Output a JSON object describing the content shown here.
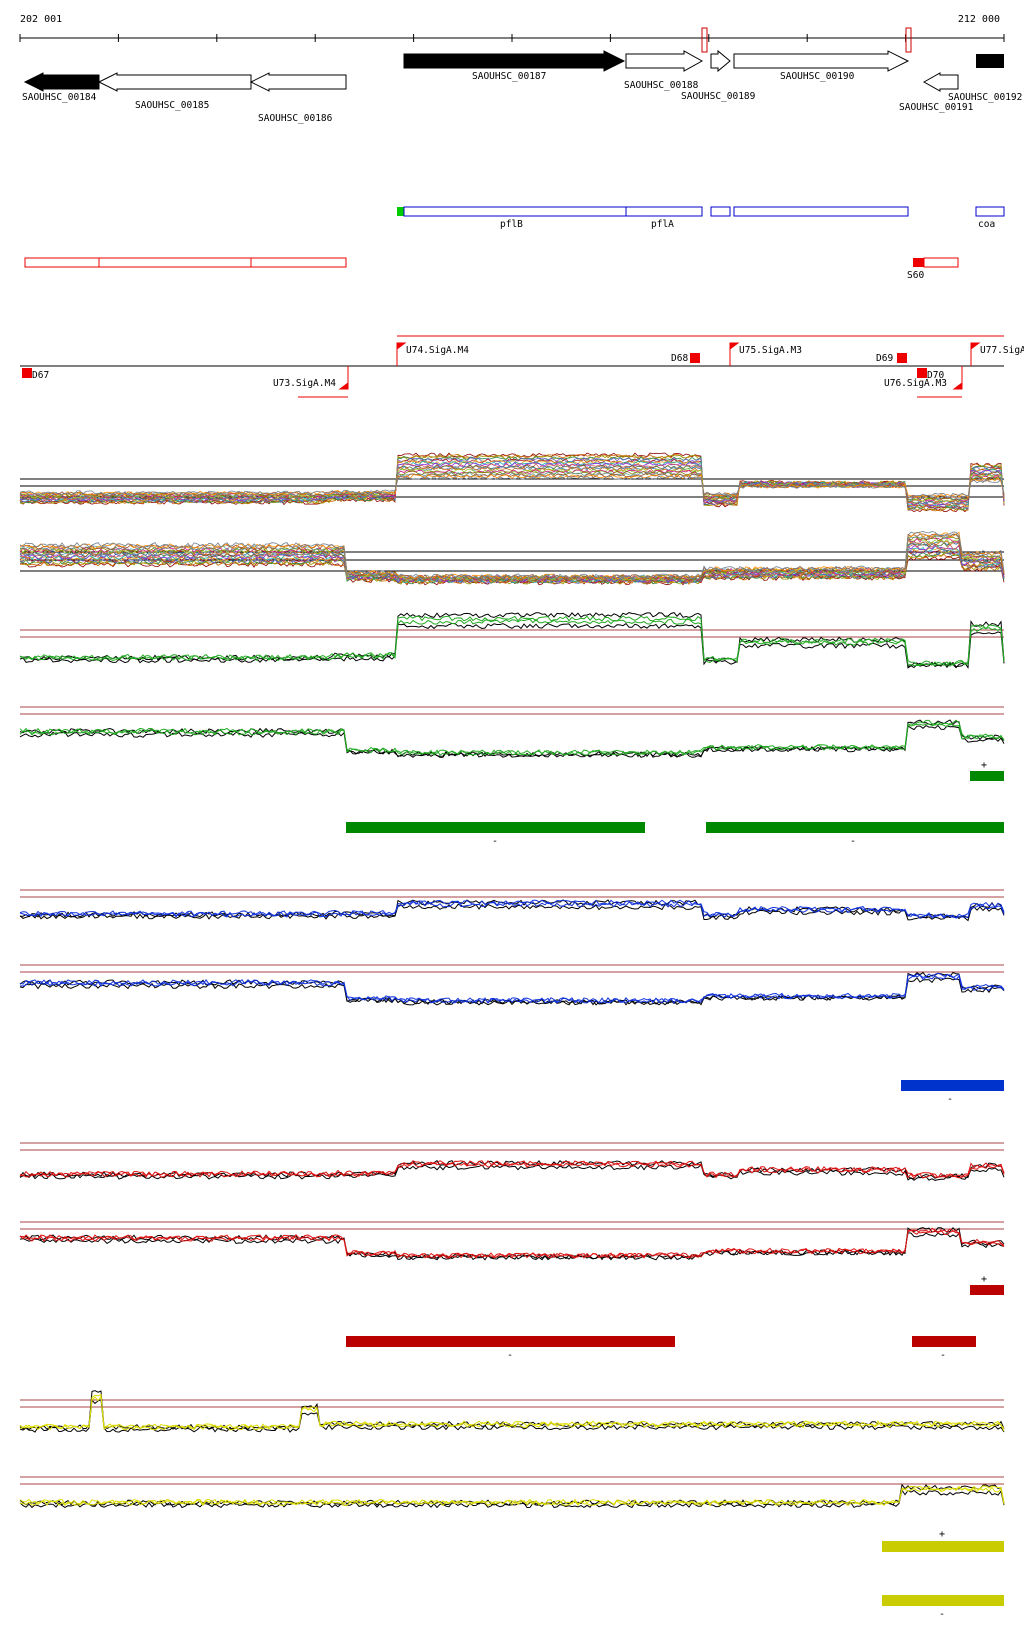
{
  "ruler": {
    "start_label": "202 001",
    "end_label": "212 000"
  },
  "genes": [
    {
      "id": "SAOUHSC_00184",
      "strand": "-",
      "filled": true
    },
    {
      "id": "SAOUHSC_00185",
      "strand": "-",
      "filled": false
    },
    {
      "id": "SAOUHSC_00186",
      "strand": "-",
      "filled": false
    },
    {
      "id": "SAOUHSC_00187",
      "strand": "+",
      "filled": true
    },
    {
      "id": "SAOUHSC_00188",
      "strand": "+",
      "filled": false
    },
    {
      "id": "SAOUHSC_00189",
      "strand": "+",
      "filled": false
    },
    {
      "id": "SAOUHSC_00190",
      "strand": "+",
      "filled": false
    },
    {
      "id": "SAOUHSC_00191",
      "strand": "-",
      "filled": false
    },
    {
      "id": "SAOUHSC_00192",
      "strand": "+",
      "filled": true
    }
  ],
  "gene_names": [
    "pflB",
    "pflA",
    "coa"
  ],
  "segment_marker": "S60",
  "promoters": [
    "U74.SigA.M4",
    "U75.SigA.M3",
    "U77.SigA",
    "U73.SigA.M4",
    "U76.SigA.M3"
  ],
  "terminators": [
    "D67",
    "D68",
    "D69",
    "D70"
  ],
  "strand_signs": {
    "plus": "+",
    "minus": "-"
  },
  "colors": {
    "gene_fill": "#000000",
    "gene_box_blue": "#0000cc",
    "gene_start_green": "#00cc00",
    "operon_red": "#ff0000",
    "feature_red": "#ee0000",
    "threshold_line": "#aa4444",
    "green_condition": "#008800",
    "blue_condition": "#0033cc",
    "red_condition": "#bb0000",
    "yellow_condition": "#c8cc00",
    "trace_green": "#22aa22",
    "trace_blue": "#1133dd",
    "trace_red": "#dd1111",
    "trace_yellow": "#dddd00"
  }
}
